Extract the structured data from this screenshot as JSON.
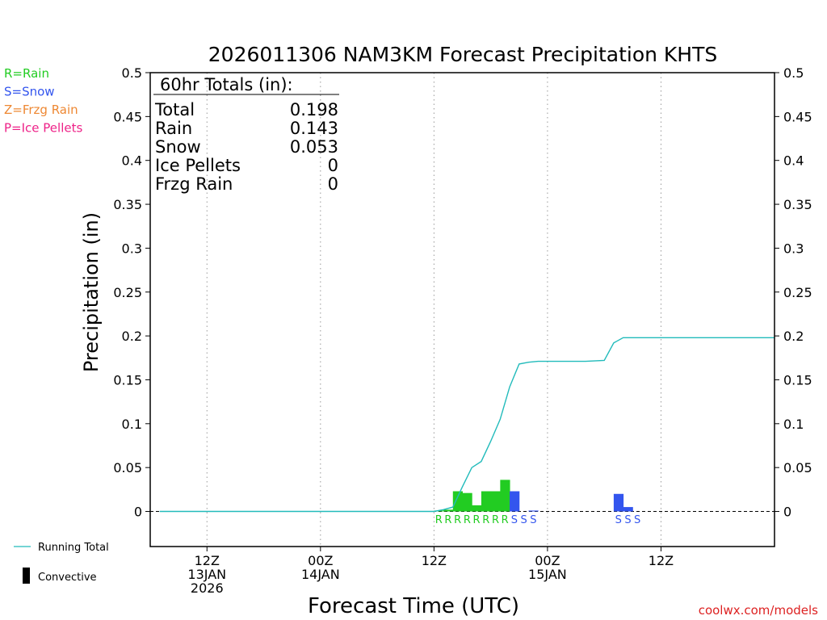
{
  "chart_data": {
    "type": "bar",
    "title": "2026011306 NAM3KM Forecast Precipitation KHTS",
    "xlabel": "Forecast Time (UTC)",
    "ylabel": "Precipitation (in)",
    "ylim": [
      -0.04,
      0.5
    ],
    "xlim_hours": [
      -6,
      60
    ],
    "y_ticks": [
      0,
      0.05,
      0.1,
      0.15,
      0.2,
      0.25,
      0.3,
      0.35,
      0.4,
      0.45,
      0.5
    ],
    "y_tick_labels": [
      "0",
      "0.05",
      "0.1",
      "0.15",
      "0.2",
      "0.25",
      "0.3",
      "0.35",
      "0.4",
      "0.45",
      "0.5"
    ],
    "x_ticks": [
      {
        "hour": 0,
        "lines": [
          "12Z",
          "13JAN",
          "2026"
        ]
      },
      {
        "hour": 12,
        "lines": [
          "00Z",
          "14JAN"
        ]
      },
      {
        "hour": 24,
        "lines": [
          "12Z"
        ]
      },
      {
        "hour": 36,
        "lines": [
          "00Z",
          "15JAN"
        ]
      },
      {
        "hour": 48,
        "lines": [
          "12Z"
        ]
      }
    ],
    "grid": "vertical dotted",
    "legend": {
      "types": [
        {
          "label": "R=Rain",
          "color": "#22cc22"
        },
        {
          "label": "S=Snow",
          "color": "#3355ee"
        },
        {
          "label": "Z=Frzg Rain",
          "color": "#ee8833"
        },
        {
          "label": "P=Ice Pellets",
          "color": "#ee2288"
        }
      ],
      "lines": [
        {
          "label": "Running Total",
          "color": "#22bbbb"
        },
        {
          "label": "Convective",
          "color": "#000000"
        }
      ]
    },
    "totals": {
      "heading": "60hr Totals (in):",
      "rows": [
        {
          "label": "Total",
          "value": "0.198"
        },
        {
          "label": "Rain",
          "value": "0.143"
        },
        {
          "label": "Snow",
          "value": "0.053"
        },
        {
          "label": "Ice Pellets",
          "value": "0"
        },
        {
          "label": "Frzg Rain",
          "value": "0"
        }
      ]
    },
    "series": [
      {
        "name": "Hourly precipitation",
        "bars": [
          {
            "hour": 24.5,
            "value": 0.001,
            "ptype": "R"
          },
          {
            "hour": 25.5,
            "value": 0.002,
            "ptype": "R"
          },
          {
            "hour": 26.5,
            "value": 0.023,
            "ptype": "R"
          },
          {
            "hour": 27.5,
            "value": 0.021,
            "ptype": "R"
          },
          {
            "hour": 28.5,
            "value": 0.007,
            "ptype": "R"
          },
          {
            "hour": 29.5,
            "value": 0.023,
            "ptype": "R"
          },
          {
            "hour": 30.5,
            "value": 0.023,
            "ptype": "R"
          },
          {
            "hour": 31.5,
            "value": 0.036,
            "ptype": "R"
          },
          {
            "hour": 32.5,
            "value": 0.023,
            "ptype": "S"
          },
          {
            "hour": 33.5,
            "value": 0.0,
            "ptype": "S"
          },
          {
            "hour": 34.5,
            "value": 0.001,
            "ptype": "S"
          },
          {
            "hour": 43.5,
            "value": 0.02,
            "ptype": "S"
          },
          {
            "hour": 44.5,
            "value": 0.005,
            "ptype": "S"
          },
          {
            "hour": 45.5,
            "value": 0.0,
            "ptype": "S"
          }
        ]
      },
      {
        "name": "Running Total",
        "points": [
          [
            -5,
            0
          ],
          [
            24,
            0
          ],
          [
            25,
            0.002
          ],
          [
            26,
            0.005
          ],
          [
            27,
            0.028
          ],
          [
            28,
            0.05
          ],
          [
            29,
            0.057
          ],
          [
            30,
            0.08
          ],
          [
            31,
            0.105
          ],
          [
            32,
            0.142
          ],
          [
            33,
            0.168
          ],
          [
            34,
            0.17
          ],
          [
            35,
            0.171
          ],
          [
            40,
            0.171
          ],
          [
            42,
            0.172
          ],
          [
            43,
            0.192
          ],
          [
            44,
            0.198
          ],
          [
            60,
            0.198
          ]
        ]
      }
    ],
    "type_letters": [
      "R",
      "R",
      "R",
      "R",
      "R",
      "R",
      "R",
      "R",
      "S",
      "S",
      "S",
      "S",
      "S",
      "S"
    ],
    "credit": "coolwx.com/models"
  }
}
